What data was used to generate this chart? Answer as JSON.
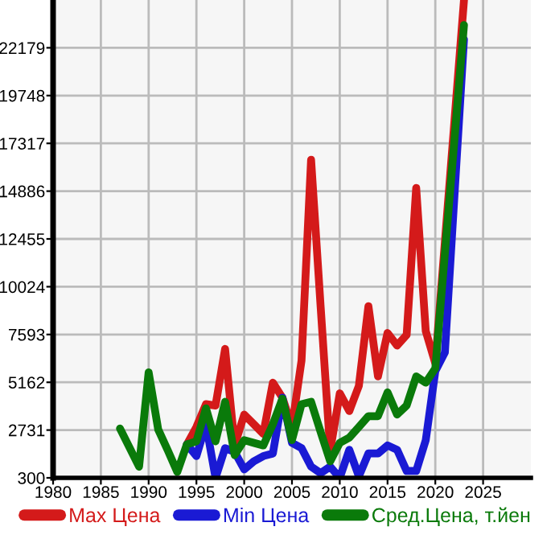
{
  "chart_data": {
    "type": "line",
    "x": [
      1987,
      1988,
      1989,
      1990,
      1991,
      1992,
      1993,
      1994,
      1995,
      1996,
      1997,
      1998,
      1999,
      2000,
      2001,
      2002,
      2003,
      2004,
      2005,
      2006,
      2007,
      2008,
      2009,
      2010,
      2011,
      2012,
      2013,
      2014,
      2015,
      2016,
      2017,
      2018,
      2019,
      2020,
      2021,
      2022,
      2023
    ],
    "series": [
      {
        "name": "Max Цена",
        "color": "#d41a1a",
        "values": [
          null,
          null,
          null,
          null,
          null,
          null,
          null,
          2000,
          2890,
          4050,
          3980,
          6860,
          1950,
          3520,
          3030,
          2540,
          5140,
          4380,
          2890,
          6270,
          16480,
          9000,
          1680,
          4600,
          3700,
          4980,
          9030,
          5460,
          7670,
          7030,
          7570,
          15050,
          7760,
          6130,
          12290,
          18440,
          24600
        ]
      },
      {
        "name": "Min Цена",
        "color": "#1a1ad4",
        "values": [
          null,
          null,
          null,
          null,
          null,
          null,
          null,
          2000,
          1410,
          3030,
          300,
          1810,
          1620,
          730,
          1140,
          1410,
          1540,
          4380,
          2080,
          1810,
          870,
          540,
          870,
          300,
          1730,
          380,
          1540,
          1540,
          1950,
          1730,
          650,
          650,
          2220,
          5730,
          6680,
          14650,
          22610
        ]
      },
      {
        "name": "Сред.Цена, т.йен",
        "color": "#0a7a0a",
        "values": [
          2810,
          1840,
          870,
          5670,
          2760,
          1700,
          600,
          2000,
          2160,
          3840,
          2160,
          4170,
          1460,
          2220,
          2080,
          1950,
          3030,
          4330,
          2220,
          4050,
          4170,
          2630,
          1140,
          2080,
          2350,
          2890,
          3440,
          3440,
          4650,
          3520,
          3980,
          5460,
          5140,
          5870,
          11700,
          17500,
          23340
        ]
      }
    ],
    "xlim": [
      1980,
      2030
    ],
    "xticks": [
      1980,
      1985,
      1990,
      1995,
      2000,
      2005,
      2010,
      2015,
      2020,
      2025
    ],
    "ylim": [
      300,
      24610
    ],
    "yticks": [
      300,
      2731,
      5162,
      7593,
      10024,
      12455,
      14886,
      17317,
      19748,
      22179
    ],
    "grid": true,
    "legend": "bottom",
    "marker": "none",
    "line_style": "solid"
  }
}
